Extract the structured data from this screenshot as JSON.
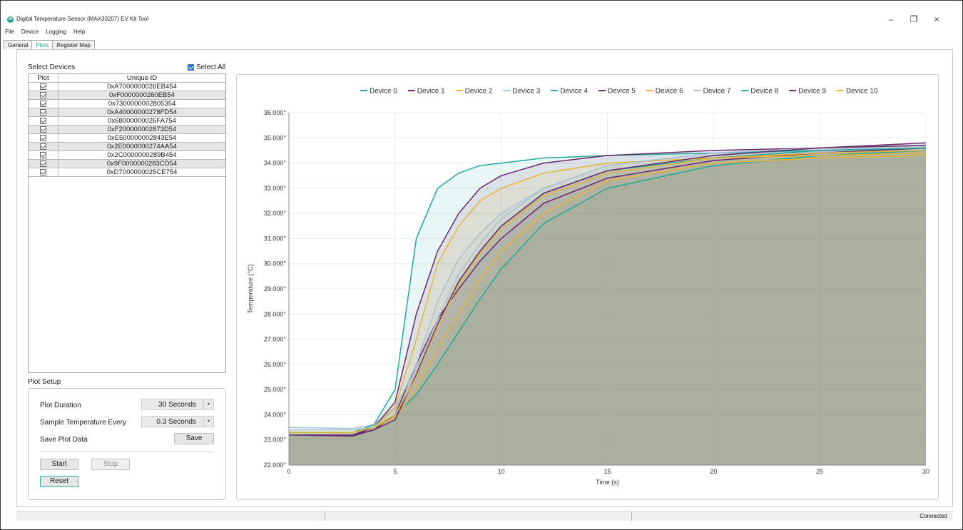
{
  "window": {
    "title": "Digital Temperature Sensor (MAX30207) EV Kit Tool",
    "minimize": "–",
    "restore": "❐",
    "close": "×"
  },
  "menu": [
    "File",
    "Device",
    "Logging",
    "Help"
  ],
  "tabs": [
    {
      "label": "General",
      "active": false
    },
    {
      "label": "Plots",
      "active": true
    },
    {
      "label": "Register Map",
      "active": false
    }
  ],
  "select_devices": {
    "title": "Select Devices",
    "select_all_label": "Select All",
    "select_all_checked": true,
    "columns": [
      "Plot",
      "Unique ID"
    ],
    "rows": [
      {
        "checked": true,
        "id": "0xA7000000026EB454"
      },
      {
        "checked": true,
        "id": "0xF0000000260EB54"
      },
      {
        "checked": true,
        "id": "0x7300000002805354"
      },
      {
        "checked": true,
        "id": "0xA40000000278FD54"
      },
      {
        "checked": true,
        "id": "0x68000000026FA754"
      },
      {
        "checked": true,
        "id": "0xF200000002873D54"
      },
      {
        "checked": true,
        "id": "0xE500000002843E54"
      },
      {
        "checked": true,
        "id": "0x2E0000000274AA54"
      },
      {
        "checked": true,
        "id": "0x2C0000000289B454"
      },
      {
        "checked": true,
        "id": "0x9F0000000283CD54"
      },
      {
        "checked": true,
        "id": "0xD7000000025CE754"
      }
    ]
  },
  "plot_setup": {
    "title": "Plot Setup",
    "duration_label": "Plot Duration",
    "duration_value": "30 Seconds",
    "sample_label": "Sample Temperature Every",
    "sample_value": "0.3 Seconds",
    "save_label": "Save Plot Data",
    "save_button": "Save",
    "start_button": "Start",
    "stop_button": "Stop",
    "reset_button": "Reset"
  },
  "status": {
    "text": "Connected"
  },
  "colors": {
    "accent": "#1aa6a0",
    "select_all_check": "#2a76d2"
  },
  "chart_data": {
    "type": "area",
    "xlabel": "Time (s)",
    "ylabel": "Temperature (°C)",
    "xlim": [
      0,
      30
    ],
    "ylim": [
      22,
      36
    ],
    "x_ticks": [
      0,
      5,
      10,
      15,
      20,
      25,
      30
    ],
    "y_ticks": [
      22,
      23,
      24,
      25,
      26,
      27,
      28,
      29,
      30,
      31,
      32,
      33,
      34,
      35,
      36
    ],
    "y_tick_labels": [
      "22.000°",
      "23.000°",
      "24.000°",
      "25.000°",
      "26.000°",
      "27.000°",
      "28.000°",
      "29.000°",
      "30.000°",
      "31.000°",
      "32.000°",
      "33.000°",
      "34.000°",
      "35.000°",
      "36.000°"
    ],
    "legend_position": "top",
    "grid": true,
    "x": [
      0,
      3,
      4,
      5,
      6,
      7,
      8,
      9,
      10,
      12,
      15,
      20,
      25,
      30
    ],
    "series": [
      {
        "name": "Device 0",
        "color": "#1faa9c",
        "values": [
          23.3,
          23.3,
          23.5,
          24.0,
          24.8,
          26.0,
          27.3,
          28.6,
          29.8,
          31.6,
          33.0,
          33.9,
          34.3,
          34.5
        ]
      },
      {
        "name": "Device 1",
        "color": "#6b2a6e",
        "values": [
          23.2,
          23.15,
          23.4,
          24.0,
          26.0,
          27.8,
          29.0,
          30.1,
          31.0,
          32.4,
          33.4,
          34.1,
          34.4,
          34.6
        ]
      },
      {
        "name": "Device 2",
        "color": "#e8b634",
        "values": [
          23.3,
          23.3,
          23.5,
          23.9,
          25.0,
          26.7,
          28.0,
          29.4,
          30.5,
          32.0,
          33.3,
          34.0,
          34.2,
          34.3
        ]
      },
      {
        "name": "Device 3",
        "color": "#a6c2d2",
        "values": [
          23.5,
          23.45,
          23.6,
          24.3,
          25.8,
          27.8,
          29.6,
          30.8,
          31.8,
          33.0,
          33.9,
          34.4,
          34.6,
          34.7
        ]
      },
      {
        "name": "Device 4",
        "color": "#1faa9c",
        "values": [
          23.3,
          23.3,
          23.6,
          25.0,
          31.0,
          33.0,
          33.6,
          33.9,
          34.0,
          34.2,
          34.3,
          34.4,
          34.5,
          34.6
        ]
      },
      {
        "name": "Device 5",
        "color": "#6b2a6e",
        "values": [
          23.2,
          23.2,
          23.5,
          24.5,
          28.0,
          30.5,
          32.0,
          33.0,
          33.5,
          34.0,
          34.3,
          34.5,
          34.6,
          34.7
        ]
      },
      {
        "name": "Device 6",
        "color": "#e8b634",
        "values": [
          23.3,
          23.3,
          23.5,
          24.3,
          27.0,
          30.0,
          31.5,
          32.5,
          33.0,
          33.6,
          34.0,
          34.2,
          34.3,
          34.4
        ]
      },
      {
        "name": "Device 7",
        "color": "#a6c2d2",
        "values": [
          23.4,
          23.4,
          23.5,
          24.2,
          26.0,
          28.5,
          30.2,
          31.2,
          32.0,
          33.0,
          33.9,
          34.4,
          34.6,
          34.8
        ]
      },
      {
        "name": "Device 8",
        "color": "#1faa9c",
        "values": [
          23.3,
          23.3,
          23.5,
          24.0,
          25.5,
          27.5,
          29.3,
          30.5,
          31.5,
          32.8,
          33.7,
          34.2,
          34.5,
          34.6
        ]
      },
      {
        "name": "Device 9",
        "color": "#6b2a6e",
        "values": [
          23.2,
          23.2,
          23.4,
          23.8,
          25.6,
          27.6,
          29.3,
          30.5,
          31.5,
          32.8,
          33.7,
          34.3,
          34.6,
          34.8
        ]
      },
      {
        "name": "Device 10",
        "color": "#e8b634",
        "values": [
          23.3,
          23.3,
          23.5,
          24.0,
          25.5,
          27.5,
          29.2,
          30.4,
          31.4,
          32.7,
          33.6,
          34.2,
          34.4,
          34.5
        ]
      }
    ]
  }
}
